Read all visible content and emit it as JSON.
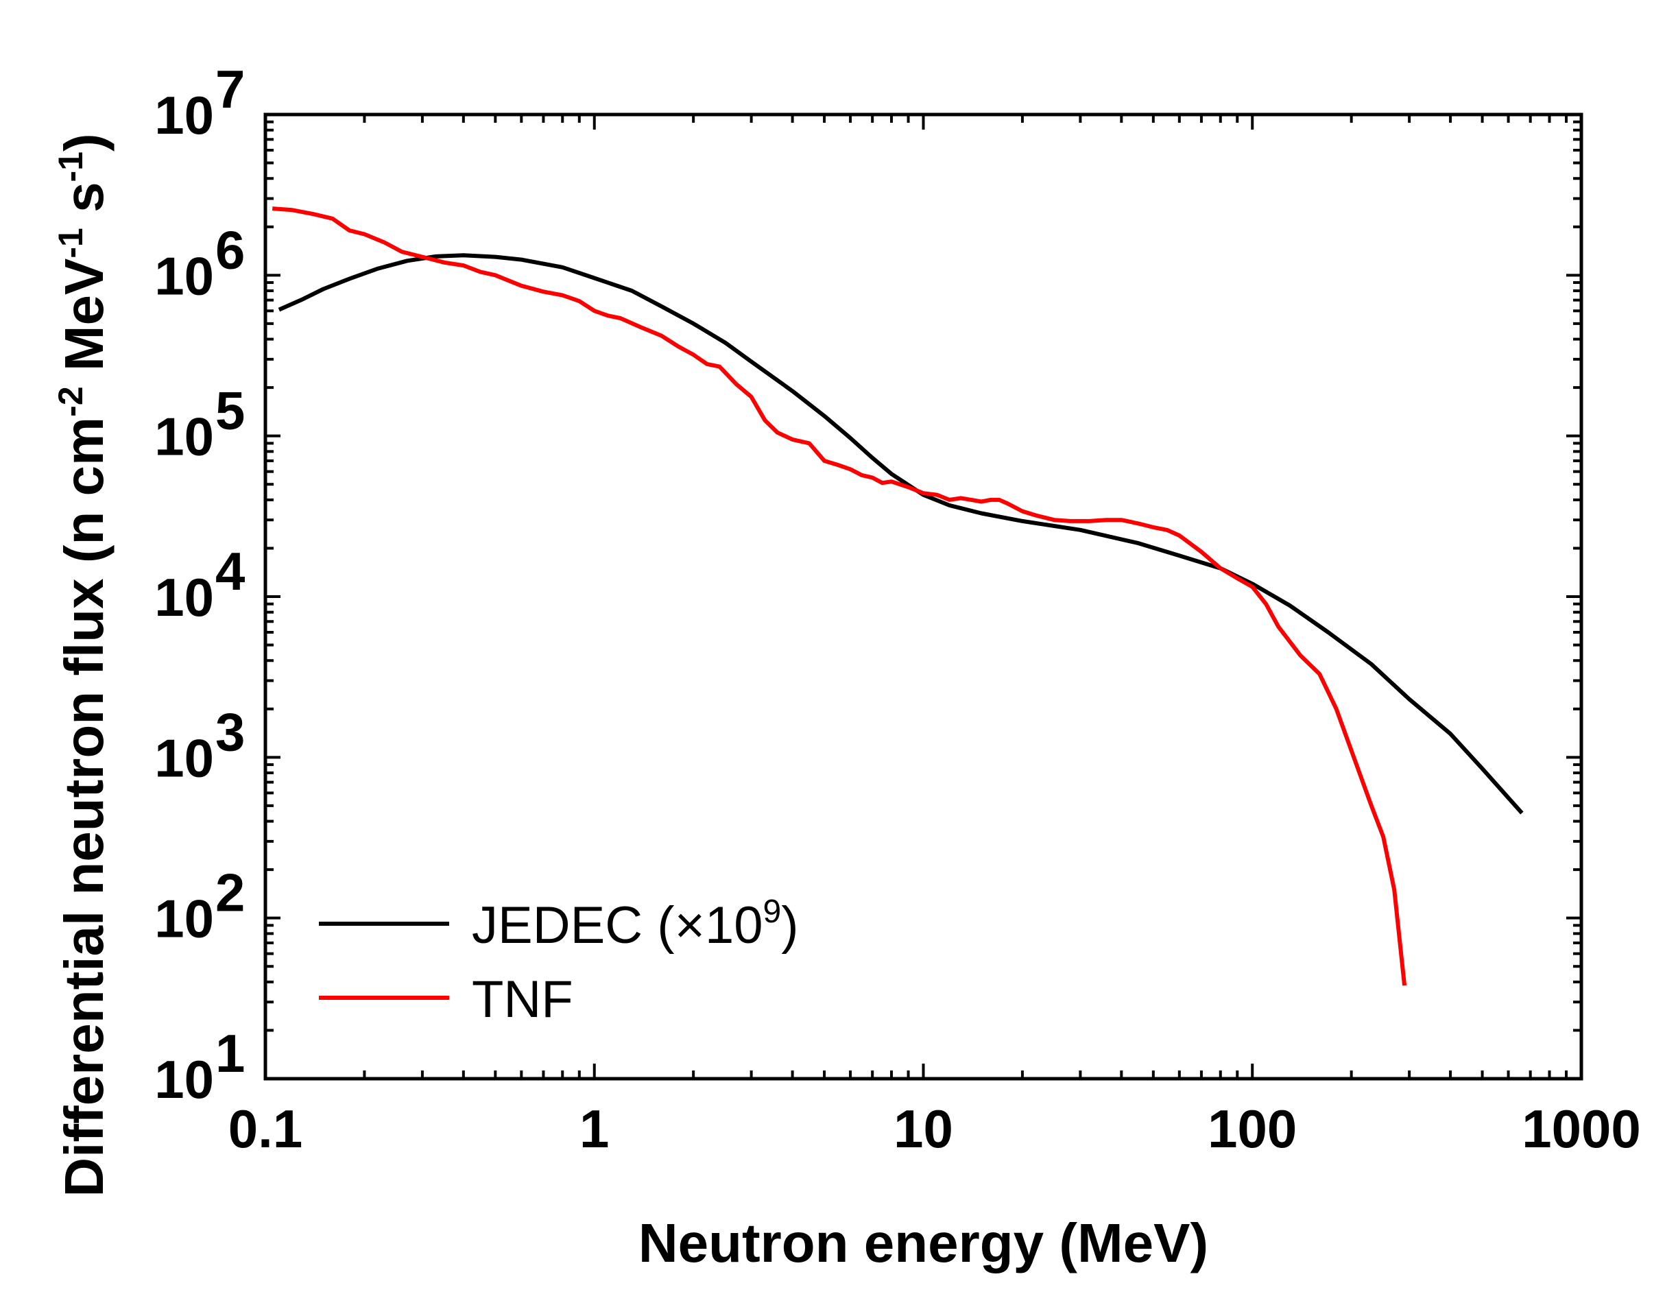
{
  "chart_data": {
    "type": "line",
    "title": "",
    "xlabel": "Neutron energy (MeV)",
    "ylabel_parts": [
      "Differential neutron flux (n cm",
      "-2",
      " MeV",
      "-1",
      " s",
      "-1",
      ")"
    ],
    "xscale": "log",
    "yscale": "log",
    "xlim": [
      0.1,
      1000
    ],
    "ylim": [
      10,
      10000000
    ],
    "x_ticks": [
      {
        "value": 0.1,
        "label": "0.1"
      },
      {
        "value": 1,
        "label": "1"
      },
      {
        "value": 10,
        "label": "10"
      },
      {
        "value": 100,
        "label": "100"
      },
      {
        "value": 1000,
        "label": "1000"
      }
    ],
    "y_ticks": [
      {
        "value": 10,
        "base": "10",
        "exp": "1"
      },
      {
        "value": 100,
        "base": "10",
        "exp": "2"
      },
      {
        "value": 1000,
        "base": "10",
        "exp": "3"
      },
      {
        "value": 10000,
        "base": "10",
        "exp": "4"
      },
      {
        "value": 100000,
        "base": "10",
        "exp": "5"
      },
      {
        "value": 1000000,
        "base": "10",
        "exp": "6"
      },
      {
        "value": 10000000,
        "base": "10",
        "exp": "7"
      }
    ],
    "grid": false,
    "legend_position": "bottom-left",
    "series": [
      {
        "name": "JEDEC",
        "legend_parts": [
          "JEDEC (×10",
          "9",
          ")"
        ],
        "color": "#000000",
        "x": [
          0.11,
          0.13,
          0.15,
          0.18,
          0.22,
          0.27,
          0.33,
          0.4,
          0.5,
          0.6,
          0.8,
          1.0,
          1.3,
          1.6,
          2.0,
          2.5,
          3.0,
          4.0,
          5.0,
          6.0,
          7.0,
          8.0,
          10,
          12,
          15,
          20,
          30,
          45,
          60,
          80,
          100,
          130,
          170,
          230,
          300,
          400,
          500,
          660
        ],
        "y": [
          610000,
          710000,
          820000,
          950000,
          1100000,
          1230000,
          1310000,
          1330000,
          1300000,
          1250000,
          1120000,
          960000,
          800000,
          640000,
          500000,
          380000,
          290000,
          190000,
          133000,
          97000,
          73000,
          58000,
          43000,
          37000,
          33000,
          29500,
          26000,
          21500,
          18000,
          15000,
          12000,
          8800,
          6000,
          3800,
          2300,
          1400,
          850,
          450
        ]
      },
      {
        "name": "TNF",
        "legend_parts": [
          "TNF"
        ],
        "color": "#ff0000",
        "x": [
          0.105,
          0.12,
          0.14,
          0.16,
          0.18,
          0.2,
          0.23,
          0.26,
          0.3,
          0.35,
          0.4,
          0.45,
          0.5,
          0.6,
          0.7,
          0.8,
          0.9,
          1.0,
          1.1,
          1.2,
          1.4,
          1.6,
          1.8,
          2.0,
          2.2,
          2.4,
          2.7,
          3.0,
          3.3,
          3.6,
          4.0,
          4.5,
          5.0,
          5.5,
          6.0,
          6.5,
          7.0,
          7.5,
          8.0,
          9.0,
          10,
          11,
          12,
          13,
          14,
          15,
          16,
          17,
          18,
          20,
          22,
          25,
          28,
          32,
          36,
          40,
          45,
          50,
          55,
          60,
          70,
          80,
          90,
          100,
          110,
          120,
          140,
          160,
          180,
          200,
          230,
          250,
          270,
          290
        ],
        "y": [
          2600000,
          2550000,
          2400000,
          2250000,
          1900000,
          1800000,
          1600000,
          1400000,
          1300000,
          1200000,
          1150000,
          1050000,
          1000000,
          860000,
          790000,
          750000,
          690000,
          600000,
          560000,
          540000,
          470000,
          420000,
          360000,
          320000,
          280000,
          270000,
          210000,
          175000,
          125000,
          105000,
          95000,
          90000,
          70000,
          66000,
          62000,
          57000,
          55000,
          51000,
          52000,
          48000,
          44000,
          43000,
          40000,
          41000,
          40000,
          39000,
          40000,
          40000,
          38000,
          34000,
          32000,
          30000,
          29500,
          29500,
          30000,
          30000,
          28500,
          27000,
          26000,
          24000,
          19000,
          15000,
          13000,
          11500,
          9000,
          6500,
          4300,
          3300,
          2000,
          1100,
          500,
          320,
          150,
          38
        ]
      }
    ]
  }
}
